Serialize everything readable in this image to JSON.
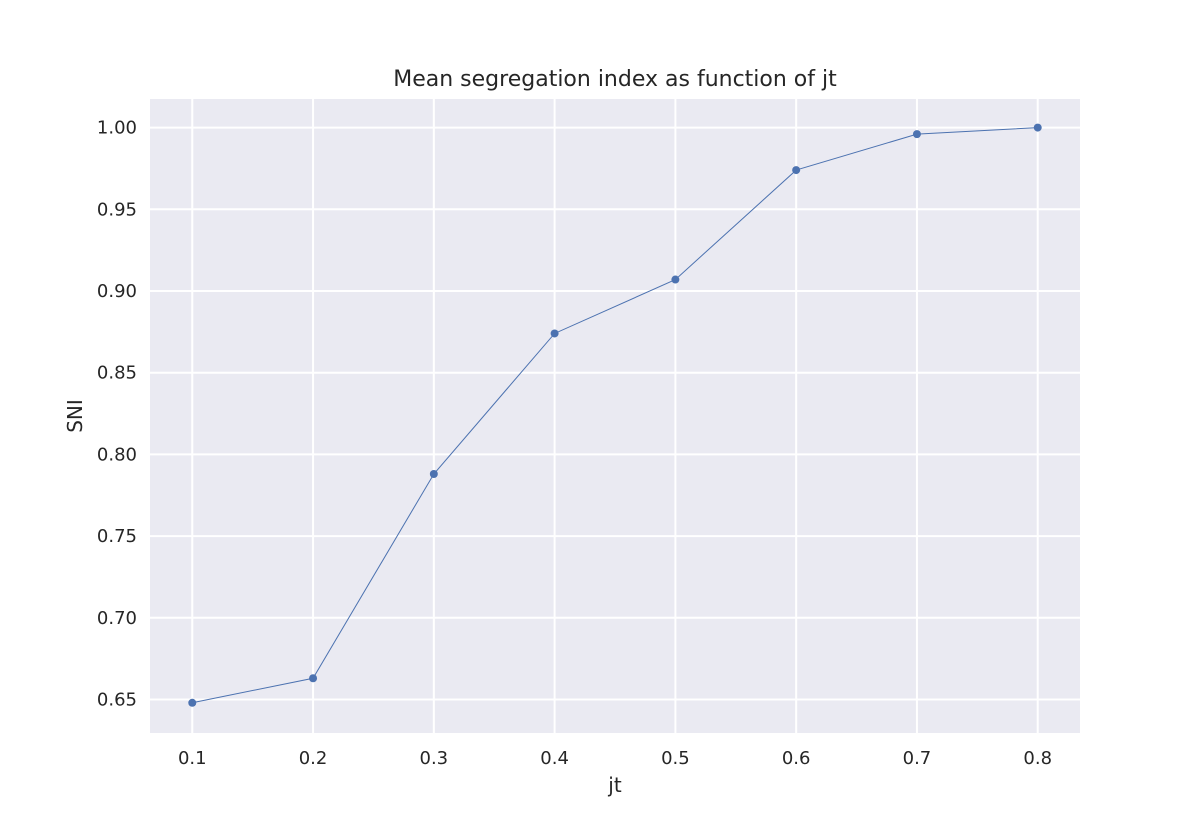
{
  "chart_data": {
    "type": "line",
    "title": "Mean segregation index as function of jt",
    "xlabel": "jt",
    "ylabel": "SNI",
    "x": [
      0.1,
      0.2,
      0.3,
      0.4,
      0.5,
      0.6,
      0.7,
      0.8
    ],
    "series": [
      {
        "values": [
          0.648,
          0.663,
          0.788,
          0.874,
          0.907,
          0.974,
          0.996,
          1.0
        ]
      }
    ],
    "xlim": [
      0.065,
      0.835
    ],
    "ylim": [
      0.6295,
      1.0175
    ],
    "xticks": [
      "0.1",
      "0.2",
      "0.3",
      "0.4",
      "0.5",
      "0.6",
      "0.7",
      "0.8"
    ],
    "yticks": [
      "0.65",
      "0.70",
      "0.75",
      "0.80",
      "0.85",
      "0.90",
      "0.95",
      "1.00"
    ],
    "grid": true,
    "colors": {
      "background": "#eaeaf2",
      "grid": "#ffffff",
      "line": "#4c72b0"
    }
  }
}
